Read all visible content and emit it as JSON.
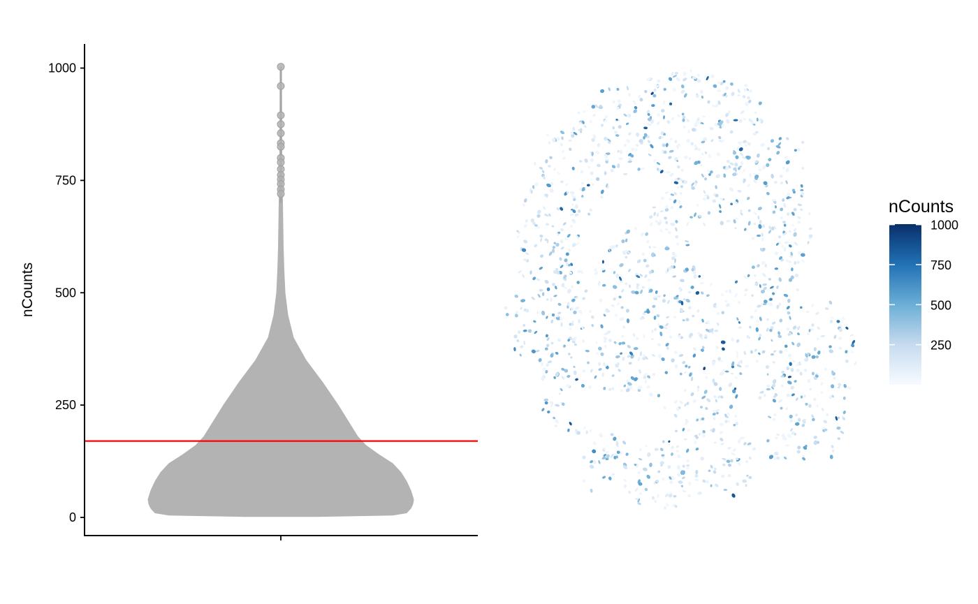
{
  "chart_data": [
    {
      "type": "violin",
      "ylabel": "nCounts",
      "xlabel": "",
      "ylim": [
        -37,
        1053
      ],
      "yticks": [
        0,
        250,
        500,
        750,
        1000
      ],
      "categories": [
        ""
      ],
      "fill_color": "#b3b3b3",
      "threshold_line": {
        "value": 170,
        "color": "#ff0000"
      },
      "density_profile": [
        {
          "y": 2,
          "half_width": 50
        },
        {
          "y": 5,
          "half_width": 160
        },
        {
          "y": 10,
          "half_width": 180
        },
        {
          "y": 20,
          "half_width": 186
        },
        {
          "y": 30,
          "half_width": 189
        },
        {
          "y": 40,
          "half_width": 190
        },
        {
          "y": 50,
          "half_width": 188
        },
        {
          "y": 60,
          "half_width": 186
        },
        {
          "y": 80,
          "half_width": 180
        },
        {
          "y": 100,
          "half_width": 172
        },
        {
          "y": 120,
          "half_width": 160
        },
        {
          "y": 140,
          "half_width": 140
        },
        {
          "y": 160,
          "half_width": 122
        },
        {
          "y": 180,
          "half_width": 110
        },
        {
          "y": 200,
          "half_width": 102
        },
        {
          "y": 250,
          "half_width": 82
        },
        {
          "y": 300,
          "half_width": 60
        },
        {
          "y": 350,
          "half_width": 36
        },
        {
          "y": 400,
          "half_width": 18
        },
        {
          "y": 450,
          "half_width": 10
        },
        {
          "y": 500,
          "half_width": 6
        },
        {
          "y": 550,
          "half_width": 4.5
        },
        {
          "y": 600,
          "half_width": 3.5
        },
        {
          "y": 650,
          "half_width": 3
        },
        {
          "y": 700,
          "half_width": 2.5
        },
        {
          "y": 780,
          "half_width": 1.5
        },
        {
          "y": 1003,
          "half_width": 1
        }
      ],
      "outliers": [
        1003,
        960,
        895,
        875,
        855,
        833,
        825,
        800,
        790,
        775,
        762,
        752,
        742,
        730,
        720
      ]
    },
    {
      "type": "scatter",
      "description_encoding": "spatial cell positions colored by nCounts",
      "color_scale": {
        "title": "nCounts",
        "colors": [
          "#f7fbff",
          "#c6dbef",
          "#6baed6",
          "#2171b5",
          "#08306b"
        ],
        "range": [
          0,
          1003
        ],
        "ticks": [
          250,
          500,
          750,
          1000
        ]
      }
    }
  ]
}
